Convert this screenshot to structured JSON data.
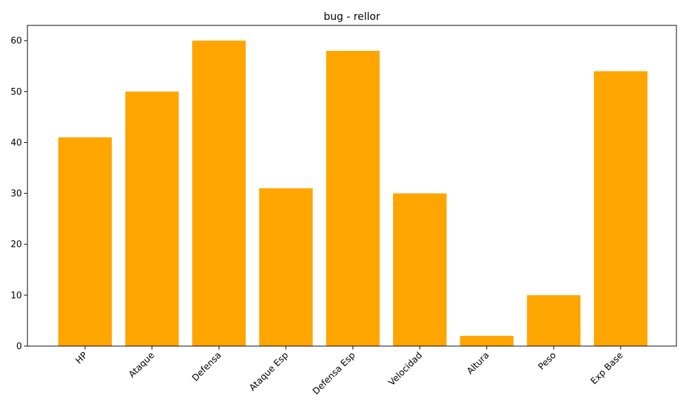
{
  "chart_data": {
    "type": "bar",
    "title": "bug - rellor",
    "xlabel": "",
    "ylabel": "",
    "categories": [
      "HP",
      "Ataque",
      "Defensa",
      "Ataque Esp",
      "Defensa Esp",
      "Velocidad",
      "Altura",
      "Peso",
      "Exp Base"
    ],
    "values": [
      41,
      50,
      60,
      31,
      58,
      30,
      2,
      10,
      54
    ],
    "ylim": [
      0,
      63
    ],
    "yticks": [
      "0",
      "10",
      "20",
      "30",
      "40",
      "50",
      "60"
    ],
    "bar_color": "#FFA500",
    "grid": false,
    "x_tick_rotation_deg": 45
  }
}
